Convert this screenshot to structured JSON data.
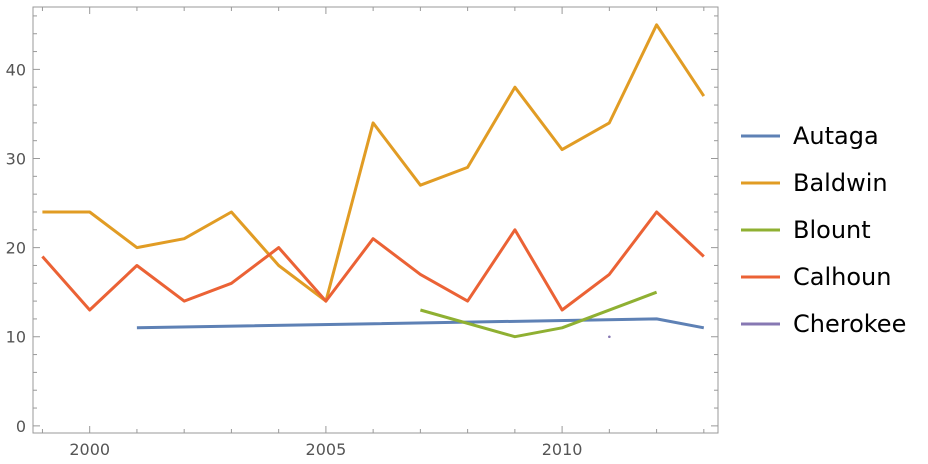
{
  "chart_data": {
    "type": "line",
    "title": "",
    "xlabel": "",
    "ylabel": "",
    "xlim": [
      1998.8,
      2013.3
    ],
    "ylim": [
      -0.8,
      47
    ],
    "x_ticks": [
      2000,
      2005,
      2010
    ],
    "y_ticks": [
      0,
      10,
      20,
      30,
      40
    ],
    "grid": false,
    "legend_position": "right",
    "series": [
      {
        "name": "Autaga",
        "color": "#5e81b5",
        "points": [
          [
            2001,
            11
          ],
          [
            2012,
            12
          ],
          [
            2013,
            11
          ]
        ]
      },
      {
        "name": "Baldwin",
        "color": "#e19c24",
        "points": [
          [
            1999,
            24
          ],
          [
            2000,
            24
          ],
          [
            2001,
            20
          ],
          [
            2002,
            21
          ],
          [
            2003,
            24
          ],
          [
            2004,
            18
          ],
          [
            2005,
            14
          ],
          [
            2006,
            34
          ],
          [
            2007,
            27
          ],
          [
            2008,
            29
          ],
          [
            2009,
            38
          ],
          [
            2010,
            31
          ],
          [
            2011,
            34
          ],
          [
            2012,
            45
          ],
          [
            2013,
            37
          ]
        ]
      },
      {
        "name": "Blount",
        "color": "#8fb032",
        "points": [
          [
            2007,
            13
          ],
          [
            2009,
            10
          ],
          [
            2010,
            11
          ],
          [
            2012,
            15
          ]
        ]
      },
      {
        "name": "Calhoun",
        "color": "#eb6235",
        "points": [
          [
            1999,
            19
          ],
          [
            2000,
            13
          ],
          [
            2001,
            18
          ],
          [
            2002,
            14
          ],
          [
            2003,
            16
          ],
          [
            2004,
            20
          ],
          [
            2005,
            14
          ],
          [
            2006,
            21
          ],
          [
            2007,
            17
          ],
          [
            2008,
            14
          ],
          [
            2009,
            22
          ],
          [
            2010,
            13
          ],
          [
            2011,
            17
          ],
          [
            2012,
            24
          ],
          [
            2013,
            19
          ]
        ]
      },
      {
        "name": "Cherokee",
        "color": "#8778b3",
        "points": [
          [
            2011,
            10
          ]
        ]
      }
    ]
  }
}
